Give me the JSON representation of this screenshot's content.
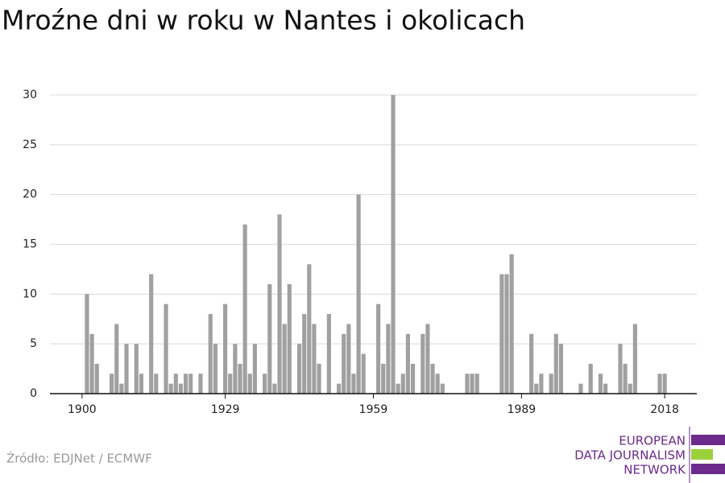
{
  "chart_data": {
    "type": "bar",
    "title": "Mroźne dni w roku w Nantes i okolicach",
    "source": "Źródło: EDJNet / ECMWF",
    "x": [
      1901,
      1902,
      1903,
      1906,
      1907,
      1908,
      1909,
      1911,
      1912,
      1914,
      1915,
      1917,
      1918,
      1919,
      1920,
      1921,
      1922,
      1924,
      1926,
      1927,
      1929,
      1930,
      1931,
      1932,
      1933,
      1934,
      1935,
      1937,
      1938,
      1939,
      1940,
      1941,
      1942,
      1944,
      1945,
      1946,
      1947,
      1948,
      1950,
      1952,
      1953,
      1954,
      1955,
      1956,
      1957,
      1960,
      1961,
      1962,
      1963,
      1964,
      1965,
      1966,
      1967,
      1969,
      1970,
      1971,
      1972,
      1973,
      1978,
      1979,
      1980,
      1985,
      1986,
      1987,
      1991,
      1992,
      1993,
      1995,
      1996,
      1997,
      2001,
      2003,
      2005,
      2006,
      2009,
      2010,
      2011,
      2012,
      2017,
      2018
    ],
    "values": [
      10,
      6,
      3,
      2,
      7,
      1,
      5,
      5,
      2,
      12,
      2,
      9,
      1,
      2,
      1,
      2,
      2,
      2,
      8,
      5,
      9,
      2,
      5,
      3,
      17,
      2,
      5,
      2,
      11,
      1,
      18,
      7,
      11,
      5,
      8,
      13,
      7,
      3,
      8,
      1,
      6,
      7,
      2,
      20,
      4,
      9,
      3,
      7,
      30,
      1,
      2,
      6,
      3,
      6,
      7,
      3,
      2,
      1,
      2,
      2,
      2,
      12,
      12,
      14,
      6,
      1,
      2,
      2,
      6,
      5,
      1,
      3,
      2,
      1,
      5,
      3,
      1,
      7,
      2,
      2
    ],
    "color": "#a0a0a0",
    "xlim": [
      1893.5,
      2024.5
    ],
    "xticks": [
      1900,
      1929,
      1959,
      1989,
      2018
    ],
    "ylim": [
      0,
      30
    ],
    "yticks": [
      0,
      5,
      10,
      15,
      20,
      25,
      30
    ],
    "grid": true
  },
  "logo": [
    "EUROPEAN",
    "DATA JOURNALISM",
    "NETWORK"
  ]
}
